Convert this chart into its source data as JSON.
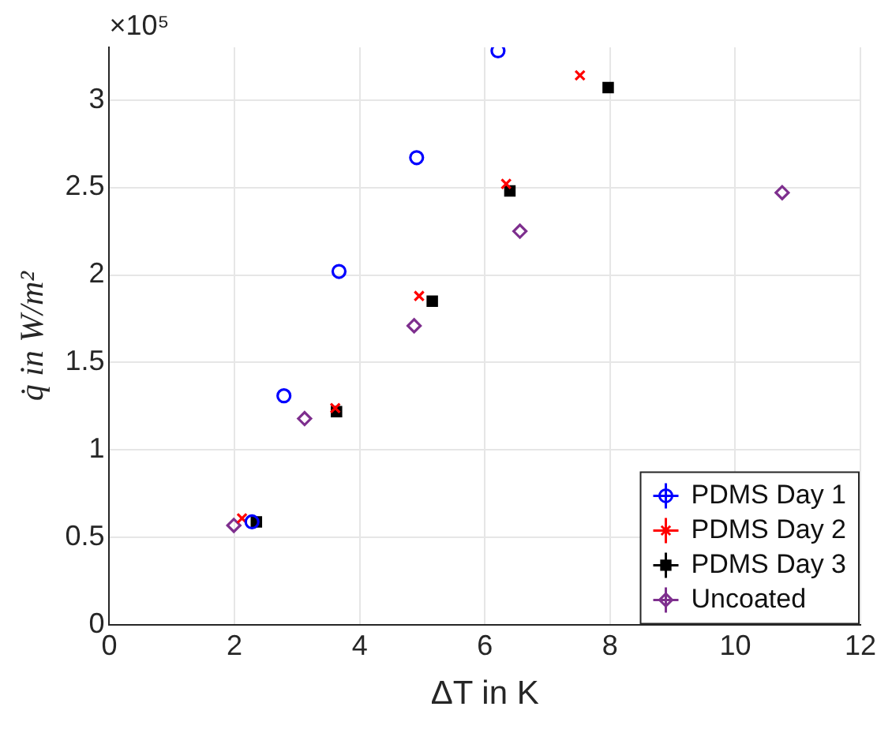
{
  "chart_data": {
    "type": "scatter",
    "xlabel": "ΔT in K",
    "ylabel": "q̇ in W/m²",
    "annotations": [
      "×10⁵"
    ],
    "xlim": [
      0,
      12
    ],
    "xticks": [
      0,
      2,
      4,
      6,
      8,
      10,
      12
    ],
    "ylim": [
      0,
      3.3
    ],
    "yticks": [
      0,
      0.5,
      1,
      1.5,
      2,
      2.5,
      3
    ],
    "grid": true,
    "legend": "bottom right",
    "series": [
      {
        "name": "PDMS Day 1",
        "color": "#0000ff",
        "marker": "circle",
        "x": [
          2.28,
          2.79,
          3.67,
          4.91,
          6.21
        ],
        "values": [
          0.59,
          1.31,
          2.02,
          2.67,
          3.28
        ]
      },
      {
        "name": "PDMS Day 2",
        "color": "#ff0000",
        "marker": "cross",
        "x": [
          2.12,
          3.61,
          4.95,
          6.34,
          7.52
        ],
        "values": [
          0.61,
          1.24,
          1.88,
          2.52,
          3.14
        ]
      },
      {
        "name": "PDMS Day 3",
        "color": "#000000",
        "marker": "square",
        "x": [
          2.35,
          3.63,
          5.16,
          6.4,
          7.97
        ],
        "values": [
          0.59,
          1.22,
          1.85,
          2.48,
          3.07
        ]
      },
      {
        "name": "Uncoated",
        "color": "#7e2f8e",
        "marker": "diamond",
        "x": [
          1.99,
          3.12,
          4.87,
          6.56,
          10.75
        ],
        "values": [
          0.57,
          1.18,
          1.71,
          2.25,
          2.47
        ]
      }
    ]
  }
}
